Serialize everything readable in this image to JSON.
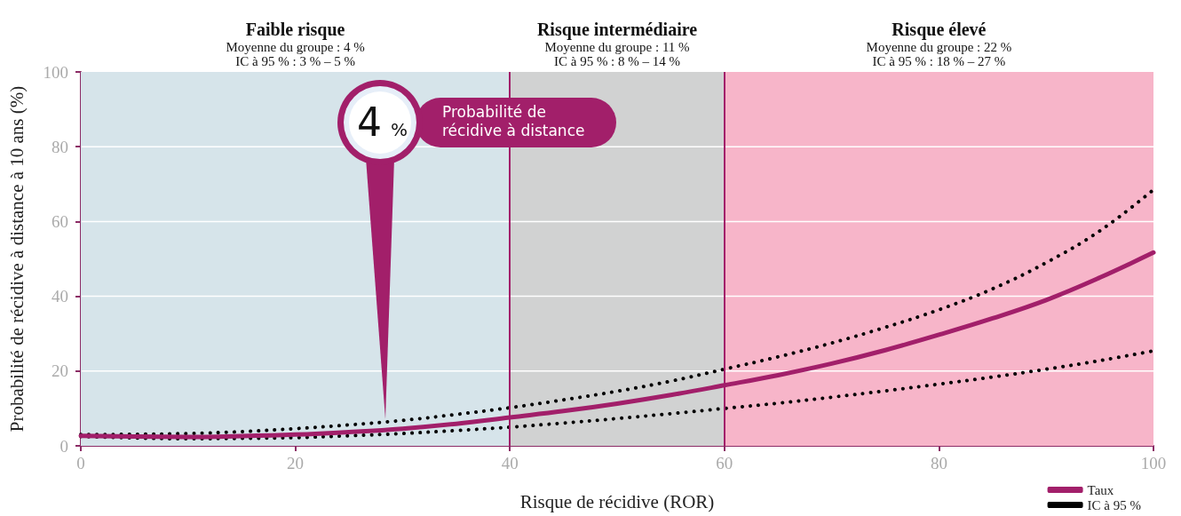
{
  "chart_data": {
    "type": "line",
    "xlabel": "Risque de récidive (ROR)",
    "ylabel": "Probabilité de récidive à distance à 10 ans (%)",
    "x": [
      0,
      5,
      10,
      15,
      20,
      25,
      30,
      35,
      40,
      45,
      50,
      55,
      60,
      65,
      70,
      75,
      80,
      85,
      90,
      95,
      100
    ],
    "series": [
      {
        "name": "Taux",
        "color": "#a21f6a",
        "line_style": "solid",
        "values": [
          2.7,
          2.5,
          2.4,
          2.6,
          3.0,
          3.7,
          4.6,
          5.9,
          7.6,
          9.3,
          11.3,
          13.6,
          16.2,
          18.9,
          22,
          25.6,
          29.7,
          34.1,
          39,
          45,
          51.7
        ]
      },
      {
        "name": "IC à 95 %",
        "color": "#000000",
        "line_style": "dotted",
        "values": [
          3,
          3.1,
          3.3,
          3.8,
          4.6,
          5.6,
          6.8,
          8.4,
          10.2,
          12.3,
          14.6,
          17.3,
          20.5,
          23.8,
          27.5,
          31.7,
          36.4,
          42,
          49,
          57.5,
          68.5
        ]
      },
      {
        "color": "#000000",
        "line_style": "dotted",
        "values": [
          2.5,
          2.1,
          1.9,
          2.0,
          2.2,
          2.7,
          3.3,
          4.1,
          5.0,
          6.1,
          7.3,
          8.6,
          10,
          11.4,
          13,
          14.7,
          16.5,
          18.4,
          20.5,
          22.8,
          25.4
        ]
      }
    ],
    "xlim": [
      0,
      100
    ],
    "xticks": [
      0,
      20,
      40,
      60,
      80,
      100
    ],
    "ylim": [
      0,
      100
    ],
    "yticks": [
      0,
      20,
      40,
      60,
      80,
      100
    ],
    "grid": "y",
    "legend": "bottom right",
    "marker": "none",
    "bands": [
      {
        "axis": "x",
        "from": 0,
        "to": 40,
        "label": "Faible risque\nMoyenne du groupe : 4 %\nIC à 95 % : 3 % – 5 %",
        "color": "#d6e4ea"
      },
      {
        "axis": "x",
        "from": 40,
        "to": 60,
        "label": "Risque intermédiaire\nMoyenne du groupe : 11 %\nIC à 95 % : 8 % – 14 %",
        "color": "#d1d2d2"
      },
      {
        "axis": "x",
        "from": 60,
        "to": 100,
        "label": "Risque élevé\nMoyenne du groupe : 22 %\nIC à 95 % : 18 % – 27 %",
        "color": "#f7b5c9"
      }
    ],
    "ref_lines": [
      {
        "axis": "x",
        "value": 40,
        "color": "#a21f6a"
      },
      {
        "axis": "x",
        "value": 60,
        "color": "#a21f6a"
      }
    ],
    "annotations": [
      "4 %",
      "Probabilité de récidive à distance"
    ]
  }
}
